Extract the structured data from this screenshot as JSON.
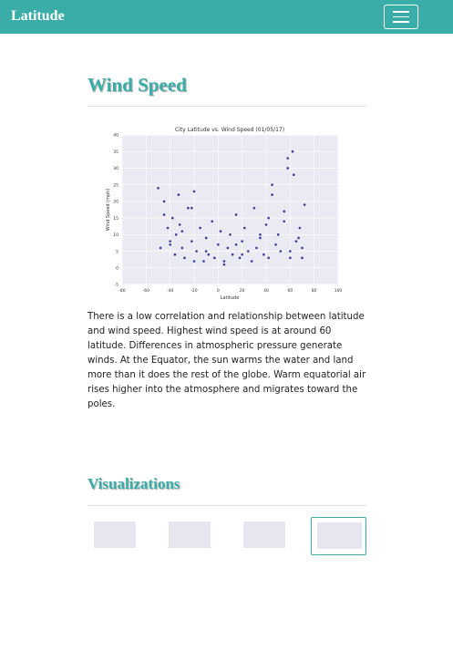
{
  "navbar": {
    "brand": "Latitude"
  },
  "section": {
    "title": "Wind Speed",
    "text": "There is a low correlation and relationship between latitude and wind speed. Highest wind speed is at around 60 latitude. Differences in atmospheric pressure generate winds. At the Equator, the sun warms the water and land more than it does the rest of the globe. Warm equatorial air rises higher into the atmosphere and migrates toward the poles."
  },
  "chart_data": {
    "type": "scatter",
    "title": "City Latitude vs. Wind Speed (01/05/17)",
    "x_label": "Latitude",
    "y_label": "Wind Speed (mph)",
    "color": "#1a1a8c",
    "grid": true,
    "xlim": [
      -80,
      100
    ],
    "ylim": [
      -5,
      40
    ],
    "xticks": [
      -80,
      -60,
      -40,
      -20,
      0,
      20,
      40,
      60,
      80,
      100
    ],
    "yticks": [
      -5,
      0,
      5,
      10,
      15,
      20,
      25,
      30,
      35,
      40
    ],
    "x": [
      -50,
      -48,
      -45,
      -42,
      -40,
      -38,
      -36,
      -35,
      -33,
      -30,
      -28,
      -25,
      -22,
      -20,
      -18,
      -15,
      -12,
      -10,
      -8,
      -5,
      -3,
      0,
      2,
      5,
      8,
      10,
      12,
      15,
      18,
      20,
      22,
      25,
      28,
      30,
      32,
      35,
      38,
      40,
      42,
      45,
      48,
      50,
      52,
      55,
      58,
      60,
      62,
      65,
      68,
      70,
      72,
      -45,
      -40,
      -30,
      -20,
      -10,
      5,
      20,
      35,
      45,
      55,
      60,
      63,
      67,
      70,
      -32,
      -22,
      15,
      42,
      58
    ],
    "values": [
      24,
      6,
      20,
      12,
      8,
      15,
      4,
      10,
      22,
      6,
      3,
      18,
      8,
      23,
      5,
      12,
      2,
      9,
      4,
      14,
      3,
      7,
      11,
      2,
      6,
      10,
      4,
      16,
      3,
      8,
      12,
      5,
      2,
      18,
      6,
      9,
      4,
      13,
      3,
      25,
      7,
      10,
      5,
      17,
      30,
      3,
      35,
      8,
      12,
      6,
      19,
      16,
      7,
      11,
      2,
      5,
      1,
      4,
      10,
      22,
      14,
      5,
      28,
      9,
      3,
      13,
      18,
      7,
      15,
      33
    ]
  },
  "visualizations": {
    "title": "Visualizations"
  }
}
